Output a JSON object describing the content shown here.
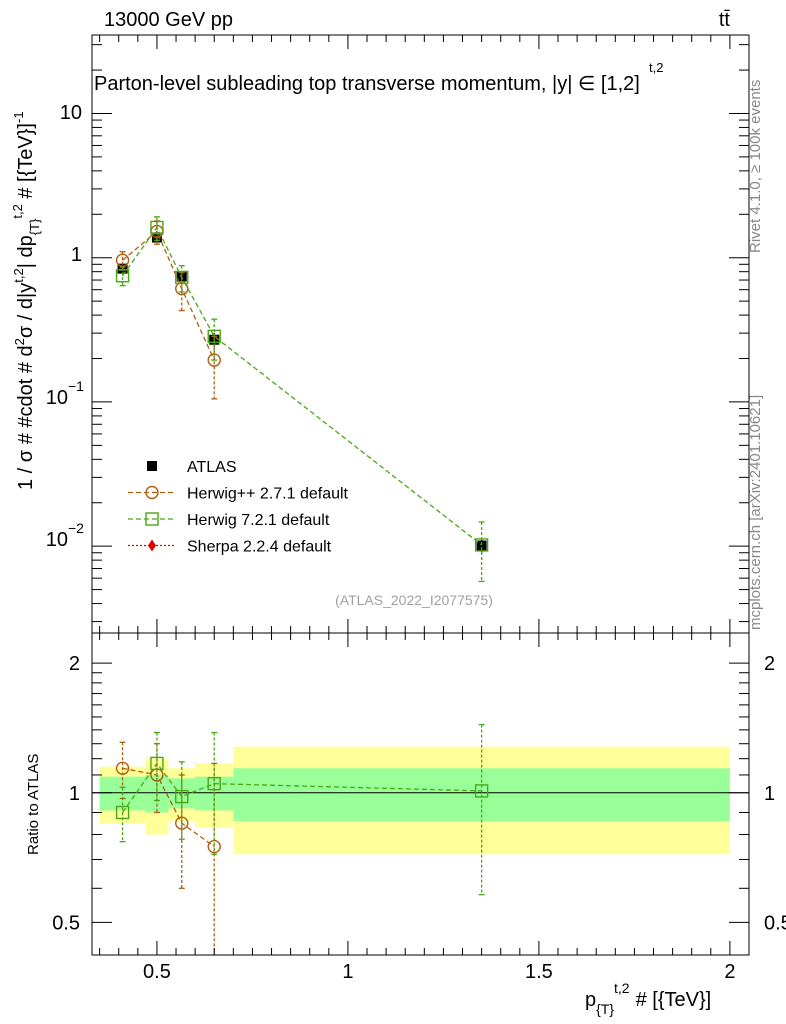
{
  "header": {
    "energy_label": "13000 GeV pp",
    "process_label": "tt̄"
  },
  "side_labels": {
    "rivet": "Rivet 4.1.0, ≥ 100k events",
    "mcplots": "mcplots.cern.ch [arXiv:2401.10621]"
  },
  "chart_data": {
    "type": "scatter",
    "title": "Parton-level subleading top transverse momentum, |y^{t,2}| ∈ [1,2]",
    "title_main": "Parton-level subleading top transverse momentum, |",
    "title_y": "y",
    "title_sup": "t,2",
    "title_tail": "| ∈ [1,2]",
    "analysis_id": "(ATLAS_2022_I2077575)",
    "xlabel": {
      "main": "p",
      "sub": "{T}",
      "sup": "t,2",
      "tail": "# [{TeV}]"
    },
    "ylabel": "1 / σ # #cdot # d²σ / d|y^{t,2}| dp_{T}^{t,2} # [{TeV}⁻¹]",
    "ylabel_parts": {
      "a": "1 / σ # #cdot # d",
      "b": "2",
      "c": "σ / d|y",
      "d": "t,2",
      "e": "| dp",
      "f": "{T}",
      "g": "t,2",
      "h": " # [{TeV}]",
      "i": "-1"
    },
    "ratio_ylabel": "Ratio to ATLAS",
    "xlim": [
      0.33,
      2.05
    ],
    "ylim_main": [
      0.0025,
      35
    ],
    "ylim_ratio": [
      0.42,
      2.35
    ],
    "x_ticks": [
      0.5,
      1,
      1.5,
      2
    ],
    "x_tick_labels": [
      "0.5",
      "1",
      "1.5",
      "2"
    ],
    "main_y_tick_labels": {
      "t10": "10",
      "t1": "1",
      "m1": "10",
      "m1e": "−1",
      "m2": "10",
      "m2e": "−2"
    },
    "ratio_ticks": [
      0.5,
      1,
      2
    ],
    "ratio_tick_labels": [
      "0.5",
      "1",
      "2"
    ],
    "bins": [
      {
        "lo": 0.35,
        "hi": 0.47
      },
      {
        "lo": 0.47,
        "hi": 0.53
      },
      {
        "lo": 0.53,
        "hi": 0.6
      },
      {
        "lo": 0.6,
        "hi": 0.7
      },
      {
        "lo": 0.7,
        "hi": 2.0
      }
    ],
    "ratio_band_green": [
      0.09,
      0.1,
      0.08,
      0.09,
      0.14
    ],
    "ratio_band_yellow": [
      0.15,
      0.2,
      0.14,
      0.17,
      0.28
    ],
    "series": [
      {
        "name": "ATLAS",
        "color": "#000000",
        "marker": "square-filled",
        "x": [
          0.41,
          0.5,
          0.565,
          0.65,
          1.35
        ],
        "y": [
          0.84,
          1.38,
          0.74,
          0.27,
          0.0101
        ],
        "yerr_lo": [
          0.06,
          0.1,
          0.05,
          0.03,
          0.0012
        ],
        "yerr_hi": [
          0.06,
          0.1,
          0.05,
          0.03,
          0.0012
        ]
      },
      {
        "name": "Herwig++ 2.7.1 default",
        "color": "#b25d0f",
        "marker": "circle-open",
        "x": [
          0.41,
          0.5,
          0.565,
          0.65
        ],
        "y": [
          0.96,
          1.52,
          0.61,
          0.195
        ],
        "yerr_lo": [
          0.14,
          0.28,
          0.18,
          0.09
        ],
        "yerr_hi": [
          0.14,
          0.28,
          0.18,
          0.09
        ],
        "ratio": [
          1.14,
          1.1,
          0.85,
          0.75
        ],
        "ratio_err_lo": [
          0.17,
          0.2,
          0.25,
          0.42
        ],
        "ratio_err_hi": [
          0.17,
          0.2,
          0.25,
          0.42
        ]
      },
      {
        "name": "Herwig 7.2.1 default",
        "color": "#4ba615",
        "marker": "square-open",
        "x": [
          0.41,
          0.5,
          0.565,
          0.65,
          1.35
        ],
        "y": [
          0.75,
          1.62,
          0.73,
          0.285,
          0.0102
        ],
        "yerr_lo": [
          0.11,
          0.3,
          0.15,
          0.09,
          0.0045
        ],
        "yerr_hi": [
          0.11,
          0.3,
          0.15,
          0.09,
          0.0045
        ],
        "ratio": [
          0.9,
          1.17,
          0.98,
          1.05,
          1.01
        ],
        "ratio_err_lo": [
          0.13,
          0.21,
          0.2,
          0.33,
          0.43
        ],
        "ratio_err_hi": [
          0.13,
          0.21,
          0.2,
          0.33,
          0.43
        ]
      },
      {
        "name": "Sherpa 2.2.4 default",
        "color": "#e00000",
        "marker": "diamond-filled",
        "x": [],
        "y": []
      }
    ],
    "legend_position": "lower-left"
  }
}
